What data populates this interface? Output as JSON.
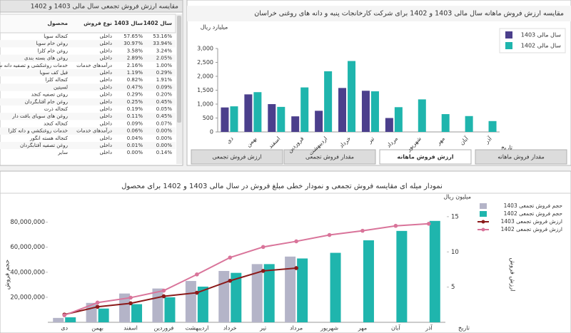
{
  "table": {
    "title": "مقایسه ارزش فروش تجمعی سال مالی 1403 و 1402",
    "columns": [
      "محصول",
      "نوع فروش",
      "سال 1403",
      "سال 1402"
    ],
    "rows": [
      [
        "کنجاله سویا",
        "داخلی",
        "57.65%",
        "53.16%"
      ],
      [
        "روغن خام سویا",
        "داخلی",
        "30.97%",
        "33.94%"
      ],
      [
        "روغن خام کلزا",
        "داخلی",
        "3.58%",
        "3.24%"
      ],
      [
        "روغن های بسته بندی",
        "داخلی",
        "2.89%",
        "2.05%"
      ],
      [
        "خدمات روغنکشی و تصفیه دانه سویا",
        "درآمدهای خدمات",
        "2.16%",
        "1.00%"
      ],
      [
        "فیل کف سویا",
        "داخلی",
        "1.19%",
        "0.29%"
      ],
      [
        "کنجاله کلزا",
        "داخلی",
        "0.82%",
        "1.91%"
      ],
      [
        "لسیتین",
        "داخلی",
        "0.47%",
        "0.09%"
      ],
      [
        "روغن تصفیه کنجد",
        "داخلی",
        "0.29%",
        "0.20%"
      ],
      [
        "روغن خام آفتابگردان",
        "داخلی",
        "0.25%",
        "0.45%"
      ],
      [
        "کنجاله ذرت",
        "داخلی",
        "0.19%",
        "0.05%"
      ],
      [
        "روغن های سویای بافت دار",
        "داخلی",
        "0.11%",
        "0.45%"
      ],
      [
        "کنجاله کنجد",
        "داخلی",
        "0.09%",
        "0.07%"
      ],
      [
        "خدمات روغنکشی و دانه کلزا",
        "درآمدهای خدمات",
        "0.06%",
        "0.00%"
      ],
      [
        "کنجاله هسته انگور",
        "داخلی",
        "0.04%",
        "0.00%"
      ],
      [
        "روغن تصفیه آفتابگردان",
        "داخلی",
        "0.01%",
        "0.00%"
      ],
      [
        "سایر",
        "داخلی",
        "0.00%",
        "0.14%"
      ]
    ]
  },
  "tabs": [
    "ارزش فروش تجمعی",
    "مقدار فروش تجمعی",
    "ارزش فروش ماهانه",
    "مقدار فروش ماهانه"
  ],
  "active_tab": 2,
  "chart_data": [
    {
      "type": "bar",
      "title": "مقایسه ارزش فروش ماهانه سال مالی 1403 و 1402 برای شرکت کارخانجات پنبه و دانه های روغنی خراسان",
      "y_label": "میلیارد ریال",
      "x_label": "تاریخ",
      "categories": [
        "دی",
        "بهمن",
        "اسفند",
        "فروردین",
        "اردیبهشت",
        "خرداد",
        "تیر",
        "مرداد",
        "شهریور",
        "مهر",
        "آبان",
        "آذر"
      ],
      "series": [
        {
          "name": "سال مالی 1403",
          "color": "#4b3f8c",
          "values": [
            880,
            1350,
            1000,
            560,
            760,
            1580,
            1480,
            500,
            null,
            null,
            null,
            null
          ]
        },
        {
          "name": "سال مالی 1402",
          "color": "#1fb5ad",
          "values": [
            920,
            1430,
            900,
            1600,
            2180,
            2550,
            1460,
            890,
            1170,
            640,
            570,
            390
          ]
        }
      ],
      "ylim": [
        0,
        3000
      ],
      "yticks": [
        0,
        500,
        {
          "value": 1000,
          "label": "1,000"
        },
        {
          "value": 1500,
          "label": "1,500"
        },
        {
          "value": 2000,
          "label": "2,000"
        },
        {
          "value": 2500,
          "label": "2,500"
        },
        {
          "value": 3000,
          "label": "3,000"
        }
      ],
      "grid": false
    },
    {
      "type": "combo",
      "title": "نمودار میله ای مقایسه فروش تجمعی و نمودار خطی مبلغ فروش در سال مالی 1403 و 1402 برای محصول",
      "y_label": "حجم فروش",
      "y2_label": "ارزش فروش",
      "y2_unit": "میلیون ریال",
      "x_label": "تاریخ",
      "categories": [
        "دی",
        "بهمن",
        "اسفند",
        "فروردین",
        "اردیبهشت",
        "خرداد",
        "تیر",
        "مرداد",
        "شهریور",
        "مهر",
        "آبان",
        "آذر"
      ],
      "series": [
        {
          "name": "حجم فروش تجمعی 1403",
          "type": "bar",
          "color": "#b4b4c8",
          "values": [
            3500000,
            15500000,
            23000000,
            27000000,
            33000000,
            41000000,
            46500000,
            52500000,
            null,
            null,
            null,
            null
          ]
        },
        {
          "name": "حجم فروش تجمعی 1402",
          "type": "bar",
          "color": "#1fb5ad",
          "values": [
            4000000,
            11000000,
            14500000,
            20000000,
            28500000,
            39500000,
            46500000,
            51000000,
            55500000,
            65500000,
            73000000,
            81000000
          ]
        },
        {
          "name": "ارزش فروش تجمعی 1403",
          "type": "line",
          "axis": "y2",
          "color": "#8b1a1a",
          "values": [
            1.1,
            2.2,
            2.7,
            3.7,
            4.2,
            5.9,
            7.3,
            7.7,
            null,
            null,
            null,
            null
          ]
        },
        {
          "name": "ارزش فروش تجمعی 1402",
          "type": "line",
          "axis": "y2",
          "color": "#d9749a",
          "values": [
            1.0,
            2.8,
            3.5,
            4.5,
            6.8,
            9.2,
            10.7,
            11.5,
            12.4,
            13.0,
            13.7,
            14.0
          ]
        }
      ],
      "ylim": [
        0,
        90000000
      ],
      "yticks": [
        {
          "value": 20000000,
          "label": "20,000,000"
        },
        {
          "value": 40000000,
          "label": "40,000,000"
        },
        {
          "value": 60000000,
          "label": "60,000,000"
        },
        {
          "value": 80000000,
          "label": "80,000,000"
        }
      ],
      "y2lim": [
        0,
        16
      ],
      "y2ticks": [
        5,
        10,
        15
      ],
      "grid": false
    }
  ]
}
